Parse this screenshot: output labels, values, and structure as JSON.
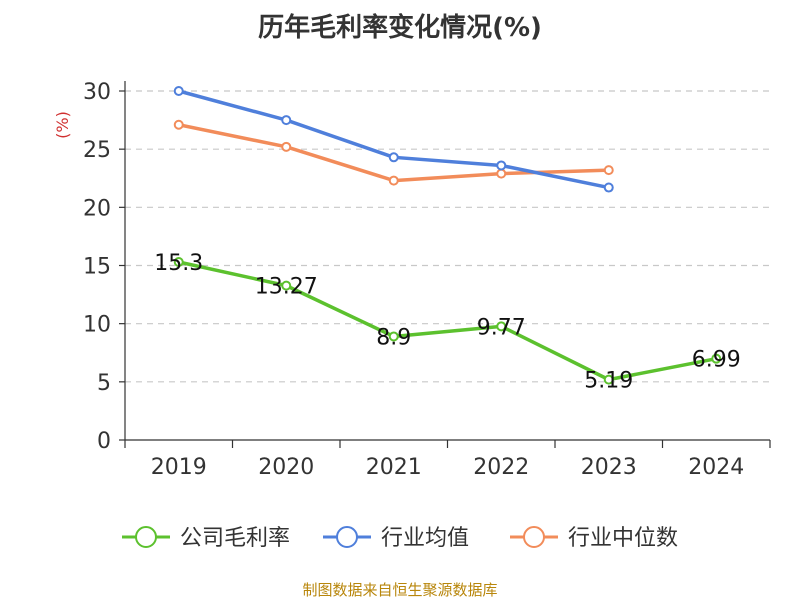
{
  "chart_data": {
    "type": "line",
    "title": "历年毛利率变化情况(%)",
    "unit_label": "(%)",
    "categories": [
      "2019",
      "2020",
      "2021",
      "2022",
      "2023",
      "2024"
    ],
    "ylim": [
      0,
      30
    ],
    "yticks": [
      0,
      5,
      10,
      15,
      20,
      25,
      30
    ],
    "grid": true,
    "legend_position": "bottom",
    "series": [
      {
        "name": "公司毛利率",
        "color": "#5cc12e",
        "values": [
          15.3,
          13.27,
          8.9,
          9.77,
          5.19,
          6.99
        ],
        "labels": [
          "15.3",
          "13.27",
          "8.9",
          "9.77",
          "5.19",
          "6.99"
        ]
      },
      {
        "name": "行业均值",
        "color": "#4f7fdb",
        "values": [
          30.0,
          27.5,
          24.3,
          23.6,
          21.7,
          null
        ]
      },
      {
        "name": "行业中位数",
        "color": "#f28c5a",
        "values": [
          27.1,
          25.2,
          22.3,
          22.9,
          23.2,
          null
        ]
      }
    ]
  },
  "source": "制图数据来自恒生聚源数据库"
}
